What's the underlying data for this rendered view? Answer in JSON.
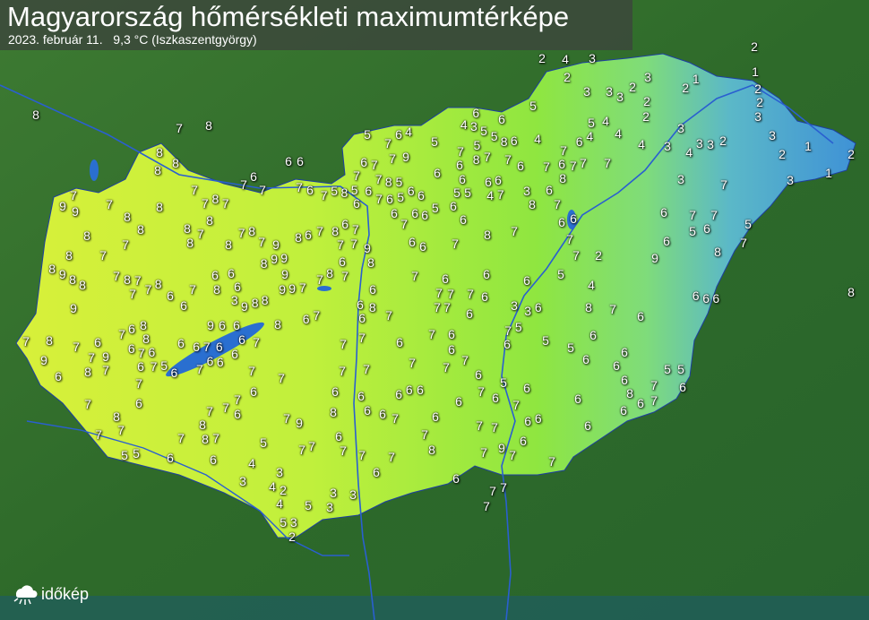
{
  "header": {
    "title": "Magyarország hőmérsékleti maximumtérképe",
    "date": "2023. február 11.",
    "max_value": "9,3 °C",
    "max_location": "(Iszkaszentgyörgy)"
  },
  "logo": {
    "text": "időkép"
  },
  "colors": {
    "west": "#e8f53a",
    "mid": "#9fe83a",
    "east": "#4aa8d8",
    "terrain": "#2f6b2a",
    "water": "#2a6fd0"
  },
  "readings": [
    2,
    1,
    2,
    2,
    3,
    8,
    7,
    8,
    6,
    6,
    2,
    4,
    3,
    2,
    3,
    3,
    3,
    2,
    3,
    2,
    1,
    2,
    2,
    5,
    6,
    4,
    3,
    5,
    5,
    6,
    5,
    6,
    4,
    7,
    5,
    5,
    6,
    4,
    5,
    4,
    6,
    4,
    4,
    4,
    3,
    3,
    4,
    3,
    3,
    2,
    3,
    2,
    1,
    2,
    1,
    3,
    8,
    8,
    8,
    7,
    7,
    8,
    7,
    7,
    6,
    7,
    7,
    6,
    7,
    8,
    9,
    7,
    9,
    7,
    8,
    8,
    8,
    8,
    7,
    8,
    8,
    8,
    7,
    8,
    7,
    8,
    7,
    9,
    8,
    6,
    7,
    8,
    6,
    7,
    7,
    7,
    8,
    7,
    8,
    9,
    8,
    8,
    7,
    8,
    7,
    7,
    7,
    8,
    7,
    6,
    6,
    6,
    8,
    9,
    9,
    7,
    8,
    7,
    9,
    8,
    6,
    9,
    9,
    9,
    8,
    7,
    8,
    3,
    6,
    6,
    9,
    8,
    9,
    7,
    6,
    8,
    8,
    7,
    8,
    7,
    6,
    7,
    9,
    9,
    8,
    7,
    6,
    6,
    7,
    6,
    6,
    6,
    6,
    7,
    6,
    7,
    5,
    6,
    6,
    6,
    6,
    6,
    7,
    9,
    6,
    7,
    6,
    8,
    6,
    7,
    6,
    8,
    6,
    7,
    6,
    7,
    7,
    6,
    7,
    6,
    6,
    7,
    7,
    7,
    7,
    7,
    6,
    6,
    7,
    6,
    6,
    6,
    5,
    4,
    3,
    3,
    6,
    8,
    7,
    6,
    6,
    6,
    6,
    7,
    6,
    5,
    5,
    5,
    6,
    6,
    6,
    6,
    5,
    5,
    6,
    6,
    7,
    8,
    6,
    7,
    6,
    6,
    6,
    7,
    6,
    6,
    6,
    5,
    6,
    7,
    7,
    7,
    6,
    6,
    6,
    7,
    6,
    7,
    7,
    7,
    6,
    7,
    8,
    7,
    9,
    7,
    6,
    6,
    7,
    7,
    7,
    7,
    7,
    6,
    8,
    7,
    7,
    7,
    7,
    6,
    6,
    7,
    7,
    7,
    7,
    6,
    6,
    6,
    6,
    6,
    7,
    8,
    7,
    9,
    8,
    8,
    7,
    7,
    7,
    5,
    5,
    6,
    6,
    5,
    7,
    7,
    6,
    7,
    7,
    7,
    6,
    4,
    3,
    3,
    4,
    2,
    4,
    3,
    3,
    5,
    3,
    3,
    5,
    2,
    3,
    7,
    6,
    7,
    7,
    6,
    5,
    5,
    6,
    7,
    8,
    9,
    8,
    6,
    7,
    7,
    7,
    8,
    5,
    5,
    5,
    6,
    6,
    7,
    6,
    5,
    6,
    6,
    6,
    6,
    6,
    5,
    5,
    6,
    6,
    4,
    7,
    6,
    3,
    7,
    6,
    7,
    7,
    7,
    8,
    6,
    7,
    7,
    9,
    8,
    8,
    7,
    7,
    7,
    6,
    6,
    6,
    6,
    6,
    5,
    7,
    6,
    6,
    7,
    8,
    7,
    8,
    7,
    6,
    6,
    7,
    7,
    2
  ]
}
